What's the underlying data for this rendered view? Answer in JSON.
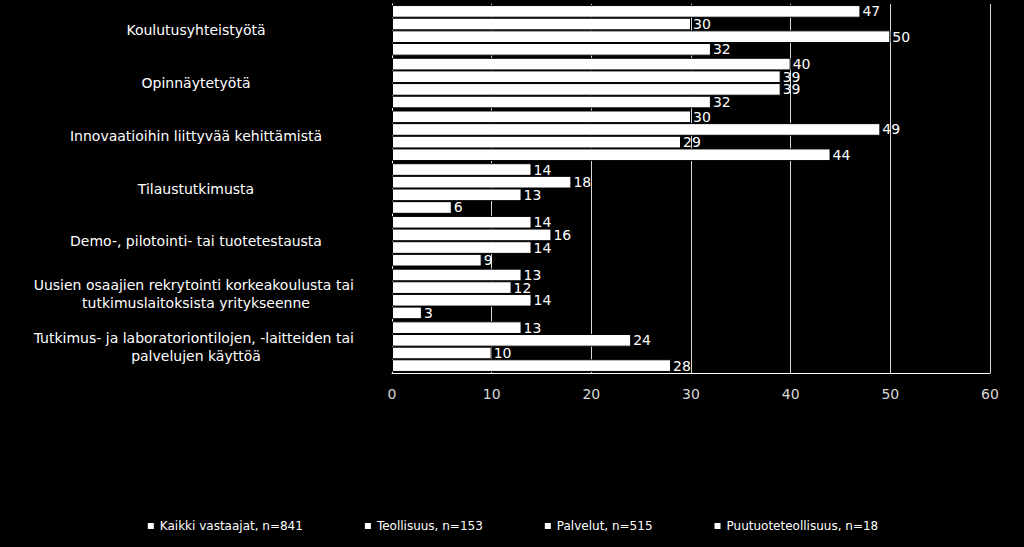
{
  "chart_data": {
    "type": "bar",
    "orientation": "horizontal",
    "categories": [
      "Koulutusyhteistyötä",
      "Opinnäytetyötä",
      "Innovaatioihin liittyvää kehittämistä",
      "Tilaustutkimusta",
      "Demo-, pilotointi- tai tuotetestausta",
      "Uusien osaajien rekrytointi korkeakoulusta tai tutkimuslaitoksista yritykseenne",
      "Tutkimus- ja laboratoriontilojen, -laitteiden tai palvelujen käyttöä"
    ],
    "series": [
      {
        "name": "Kaikki vastaajat, n=841",
        "color": "#ffffff",
        "values": [
          47,
          40,
          30,
          14,
          14,
          13,
          13
        ]
      },
      {
        "name": "Teollisuus, n=153",
        "color": "#ffffff",
        "values": [
          30,
          39,
          49,
          18,
          16,
          12,
          24
        ]
      },
      {
        "name": "Palvelut, n=515",
        "color": "#ffffff",
        "values": [
          50,
          39,
          29,
          13,
          14,
          14,
          10
        ]
      },
      {
        "name": "Puutuoteteollisuus, n=18",
        "color": "#ffffff",
        "values": [
          32,
          32,
          44,
          6,
          9,
          3,
          28
        ]
      }
    ],
    "xlim": [
      0,
      60
    ],
    "xticks": [
      0,
      10,
      20,
      30,
      40,
      50,
      60
    ],
    "grid": true,
    "data_labels": true,
    "legend": "bottom"
  }
}
